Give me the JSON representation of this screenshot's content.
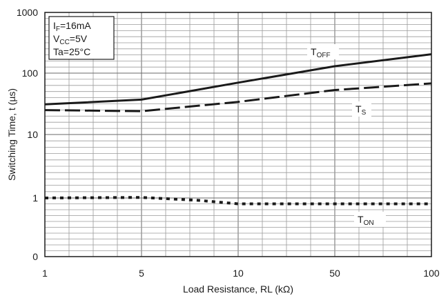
{
  "chart_data": {
    "type": "line",
    "xlabel": "Load Resistance, RL (kΩ)",
    "ylabel": "Switching Time, t (µs)",
    "x_ticks": [
      "1",
      "5",
      "10",
      "50",
      "100"
    ],
    "y_ticks": [
      "0",
      "1",
      "10",
      "100",
      "1000"
    ],
    "conditions": [
      {
        "main": "I",
        "sub": "F",
        "rest": "=16mA"
      },
      {
        "main": "V",
        "sub": "CC",
        "rest": "=5V"
      },
      {
        "main": "Ta=25°C",
        "sub": "",
        "rest": ""
      }
    ],
    "series": [
      {
        "name": "TOFF",
        "label_main": "T",
        "label_sub": "OFF",
        "style": "solid",
        "points": [
          [
            1,
            31
          ],
          [
            5,
            37
          ],
          [
            10,
            70
          ],
          [
            50,
            130
          ],
          [
            100,
            205
          ]
        ]
      },
      {
        "name": "TS",
        "label_main": "T",
        "label_sub": "S",
        "style": "dashed",
        "points": [
          [
            1,
            25
          ],
          [
            5,
            24
          ],
          [
            10,
            34
          ],
          [
            50,
            53
          ],
          [
            100,
            68
          ]
        ]
      },
      {
        "name": "TON",
        "label_main": "T",
        "label_sub": "ON",
        "style": "dotted",
        "points": [
          [
            1,
            1.0
          ],
          [
            5,
            1.02
          ],
          [
            7.5,
            0.96
          ],
          [
            10,
            0.9
          ],
          [
            50,
            0.9
          ],
          [
            100,
            0.9
          ]
        ]
      }
    ]
  }
}
